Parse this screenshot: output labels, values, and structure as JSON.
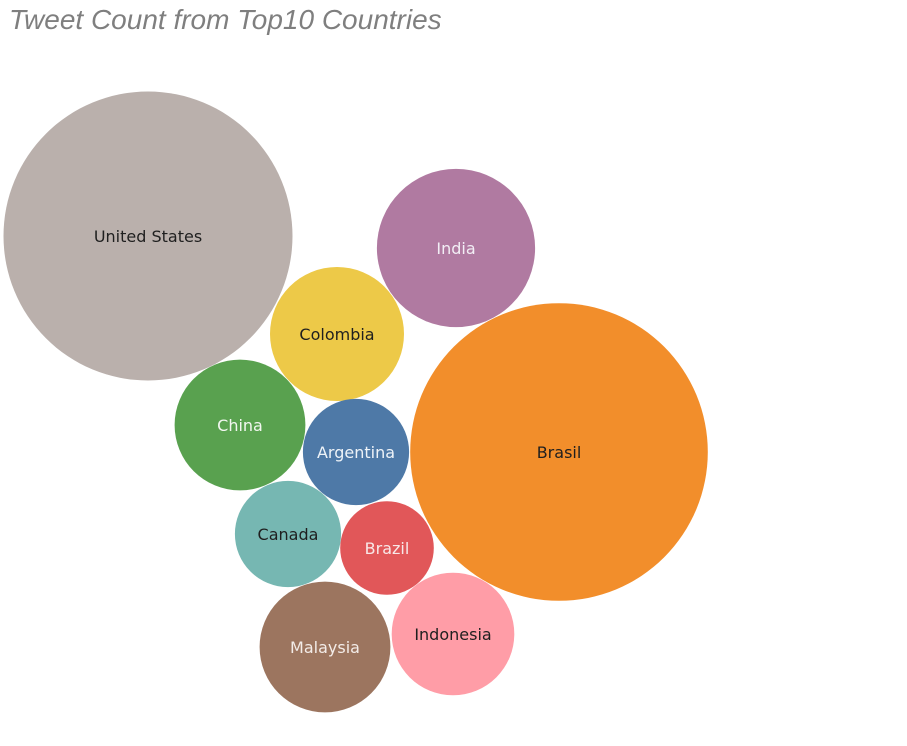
{
  "chart_data": {
    "type": "bubble",
    "title": "Tweet Count from Top10 Countries",
    "items": [
      {
        "label": "United States",
        "value": 100,
        "color": "#bab0ac",
        "label_color": "#1f1f1f"
      },
      {
        "label": "Brasil",
        "value": 106,
        "color": "#f28e2b",
        "label_color": "#1f1f1f"
      },
      {
        "label": "India",
        "value": 30,
        "color": "#b07aa1",
        "label_color": "#f2eef5"
      },
      {
        "label": "Colombia",
        "value": 21.5,
        "color": "#edc948",
        "label_color": "#1f1f1f"
      },
      {
        "label": "China",
        "value": 20.5,
        "color": "#59a14f",
        "label_color": "#f2f7f0"
      },
      {
        "label": "Argentina",
        "value": 13.5,
        "color": "#4e79a7",
        "label_color": "#eef3f8"
      },
      {
        "label": "Canada",
        "value": 13.5,
        "color": "#76b7b2",
        "label_color": "#1f1f1f"
      },
      {
        "label": "Brazil",
        "value": 10.5,
        "color": "#e15759",
        "label_color": "#f8e8e8"
      },
      {
        "label": "Malaysia",
        "value": 20.5,
        "color": "#9c755f",
        "label_color": "#f3ece8"
      },
      {
        "label": "Indonesia",
        "value": 18,
        "color": "#ff9da7",
        "label_color": "#1f1f1f"
      }
    ]
  }
}
